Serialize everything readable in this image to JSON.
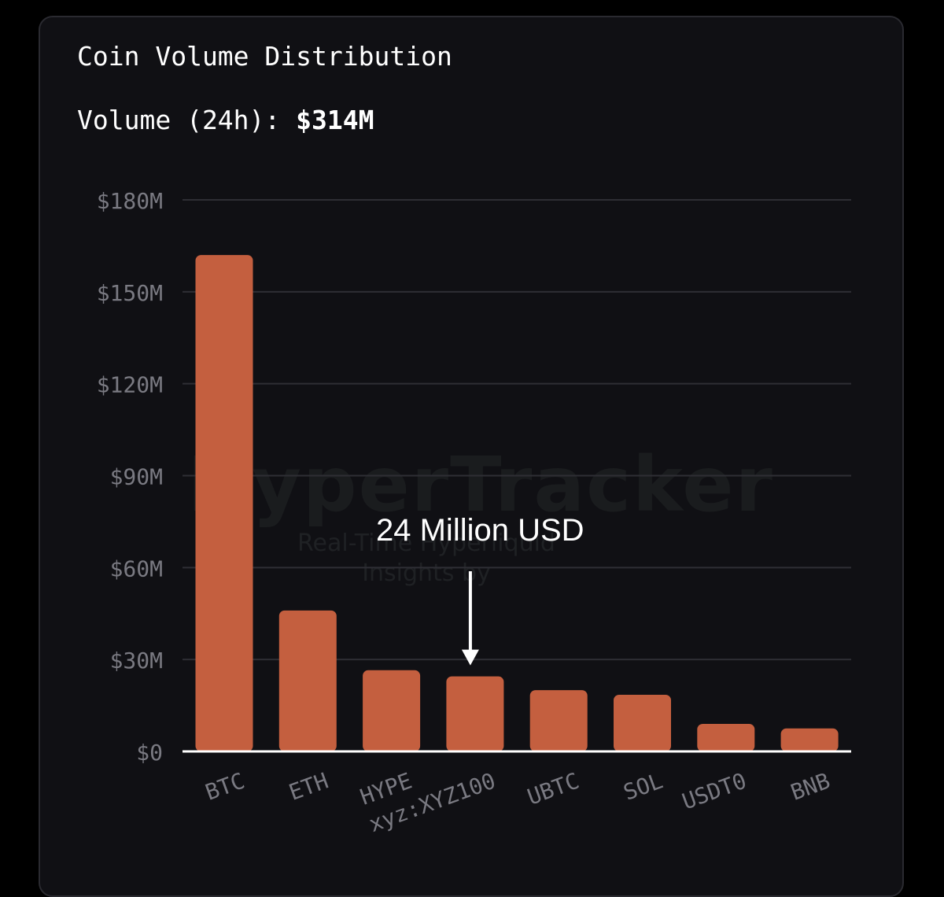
{
  "card": {
    "title": "Coin Volume Distribution",
    "volume_label": "Volume (24h):",
    "volume_value": "$314M"
  },
  "watermark": {
    "brand": "HyperTracker",
    "tagline": "Real-Time Hyperliquid Insights by"
  },
  "annotation": {
    "text": "24 Million USD",
    "target_category": "xyz:XYZ100"
  },
  "colors": {
    "background": "#000000",
    "card": "#101014",
    "bar": "#c45f3f",
    "grid": "#2e2e34",
    "baseline": "#ffffff",
    "tick_text": "#7a7a82"
  },
  "chart_data": {
    "type": "bar",
    "title": "Coin Volume Distribution",
    "categories": [
      "BTC",
      "ETH",
      "HYPE",
      "xyz:XYZ100",
      "UBTC",
      "SOL",
      "USDT0",
      "BNB"
    ],
    "values": [
      162,
      46,
      26.5,
      24.5,
      20,
      18.5,
      9,
      7.5
    ],
    "unit": "$M",
    "ylim": [
      0,
      180
    ],
    "yticks": [
      0,
      30,
      60,
      90,
      120,
      150,
      180
    ],
    "ytick_labels": [
      "$0",
      "$30M",
      "$60M",
      "$90M",
      "$120M",
      "$150M",
      "$180M"
    ],
    "xlabel": "",
    "ylabel": "",
    "grid": true,
    "legend": "none"
  }
}
